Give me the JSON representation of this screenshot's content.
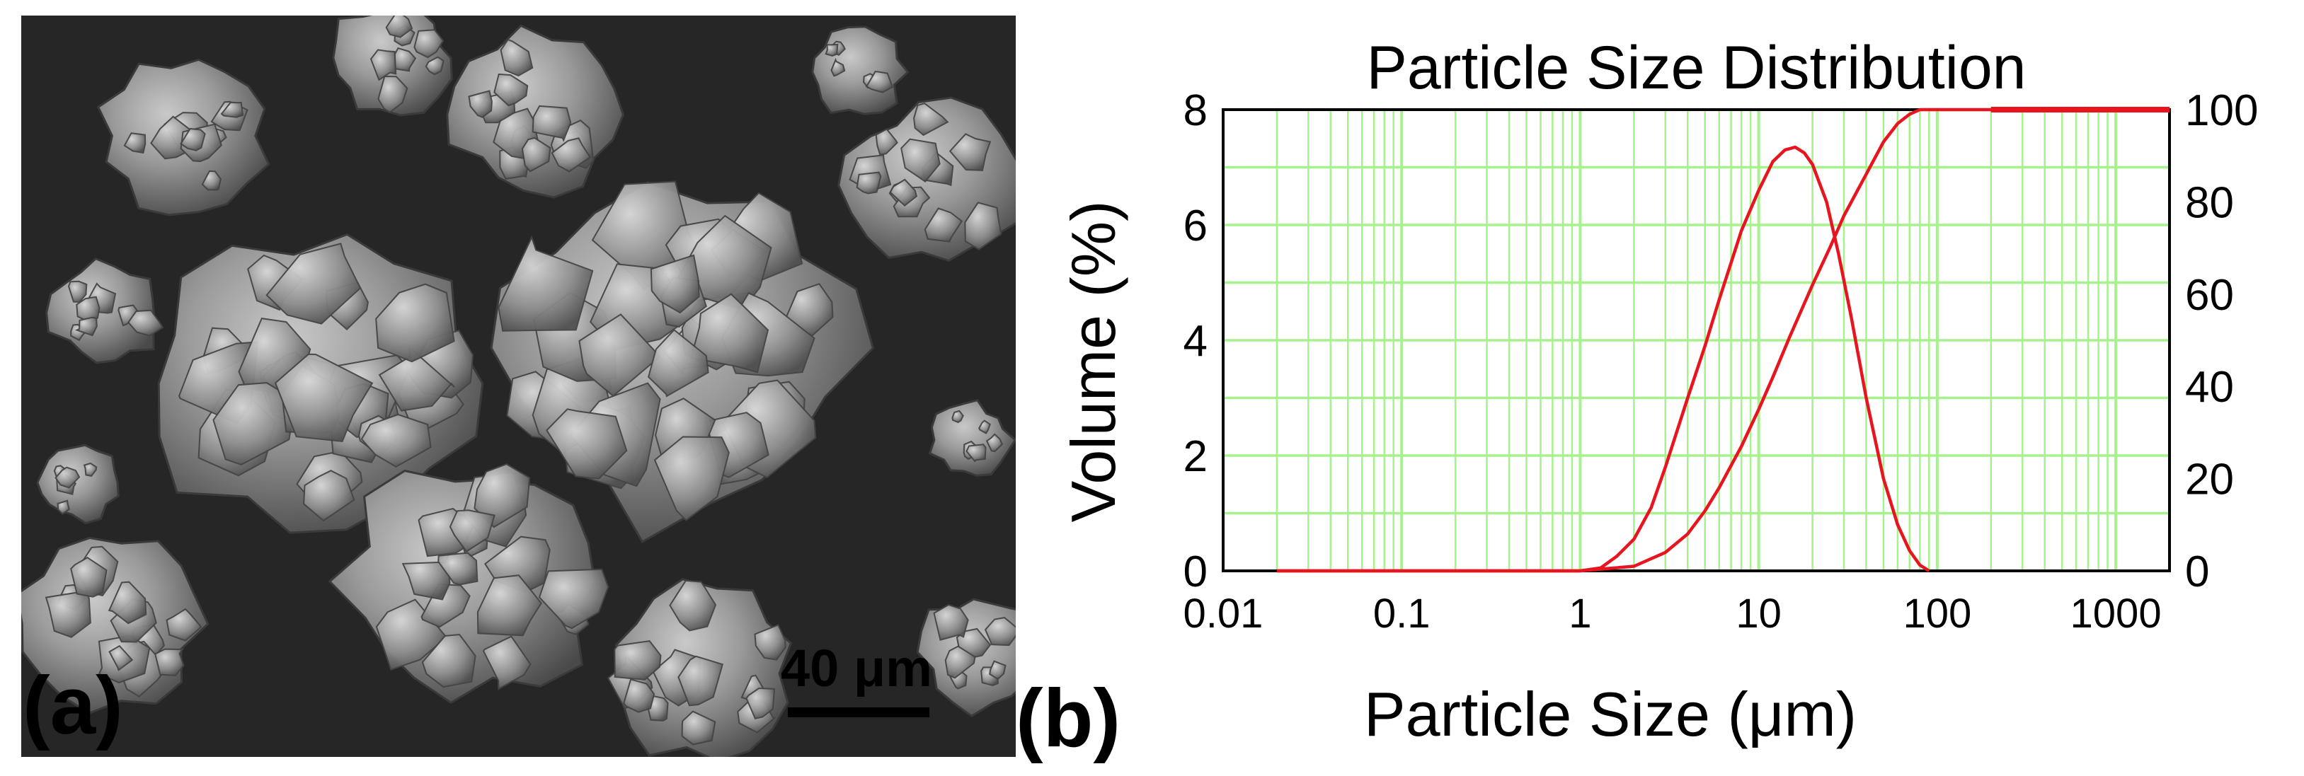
{
  "panels": {
    "a": {
      "label": "(a)",
      "scale_bar_label": "40 μm"
    },
    "b": {
      "label": "(b)"
    }
  },
  "colors": {
    "grid": "#a6f28c",
    "curve": "#e8141e",
    "sem_background": "#262626"
  },
  "chart_data": {
    "type": "line",
    "title": "Particle Size Distribution",
    "xlabel": "Particle Size (μm)",
    "ylabel": "Volume (%)",
    "x_scale": "log",
    "xlim": [
      0.01,
      2000
    ],
    "ylim": [
      0,
      8
    ],
    "y2lim": [
      0,
      100
    ],
    "x_tick_labels": [
      "0.01",
      "0.1",
      "1",
      "10",
      "100",
      "1000"
    ],
    "y_tick_labels": [
      "0",
      "2",
      "4",
      "6",
      "8"
    ],
    "y2_tick_labels": [
      "0",
      "20",
      "40",
      "60",
      "80",
      "100"
    ],
    "grid": true,
    "legend": "none",
    "series": [
      {
        "axis": "left",
        "x": [
          0.02,
          0.1,
          0.5,
          1.0,
          1.3,
          1.6,
          2.0,
          2.5,
          3.0,
          4.0,
          5.0,
          6.0,
          8.0,
          10.0,
          12.0,
          14.0,
          16.0,
          18.0,
          20.0,
          24.0,
          28.0,
          33.0,
          40.0,
          50.0,
          60.0,
          70.0,
          80.0,
          90.0
        ],
        "y": [
          0,
          0,
          0,
          0,
          0.05,
          0.25,
          0.55,
          1.1,
          1.8,
          3.0,
          3.9,
          4.7,
          5.9,
          6.6,
          7.1,
          7.3,
          7.35,
          7.25,
          7.05,
          6.4,
          5.5,
          4.4,
          3.0,
          1.6,
          0.8,
          0.35,
          0.1,
          0
        ]
      },
      {
        "axis": "right",
        "x": [
          0.02,
          0.1,
          0.5,
          1.0,
          2.0,
          3.0,
          4.0,
          5.0,
          6.0,
          8.0,
          10.0,
          12.0,
          15.0,
          20.0,
          25.0,
          30.0,
          40.0,
          50.0,
          60.0,
          70.0,
          80.0,
          100.0,
          200.0,
          2000.0
        ],
        "y": [
          0,
          0,
          0,
          0,
          1,
          4,
          8,
          13,
          18,
          27,
          35,
          42,
          51,
          62,
          70,
          77,
          86,
          93,
          97,
          99,
          100,
          100,
          100,
          100
        ]
      }
    ]
  }
}
